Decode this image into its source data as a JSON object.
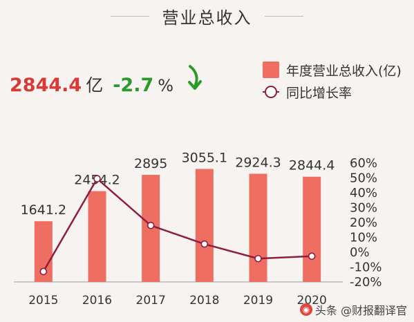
{
  "header": {
    "title": "营业总收入"
  },
  "kpi": {
    "value": "2844.4",
    "unit": "亿",
    "change": "-2.7",
    "change_unit": "%"
  },
  "colors": {
    "bar": "#ef6e62",
    "line": "#8e1d3d",
    "kpi_value": "#d93a35",
    "kpi_change": "#2b9a2b",
    "arrow": "#2b9a2b"
  },
  "icons": {
    "trend": "down-arrow-icon"
  },
  "watermark": {
    "text": "头条 @财报翻译官"
  },
  "chart_data": {
    "type": "bar",
    "categories": [
      "2015",
      "2016",
      "2017",
      "2018",
      "2019",
      "2020"
    ],
    "series": [
      {
        "name": "年度营业总收入(亿)",
        "type": "bar",
        "axis": "left",
        "values": [
          1641.2,
          2454.2,
          2895,
          3055.1,
          2924.3,
          2844.4
        ],
        "labels": [
          "1641.2",
          "2454.2",
          "2895",
          "3055.1",
          "2924.3",
          "2844.4"
        ]
      },
      {
        "name": "同比增长率",
        "type": "line",
        "axis": "right",
        "values": [
          -13,
          49.5,
          18,
          5.5,
          -4.3,
          -2.7
        ]
      }
    ],
    "y_left_range": [
      0,
      3400
    ],
    "y_right_range": [
      -20,
      60
    ],
    "y_right_ticks": [
      "60%",
      "50%",
      "40%",
      "30%",
      "20%",
      "10%",
      "0%",
      "-10%",
      "-20%"
    ],
    "legend_position": "top-right",
    "grid": false
  }
}
